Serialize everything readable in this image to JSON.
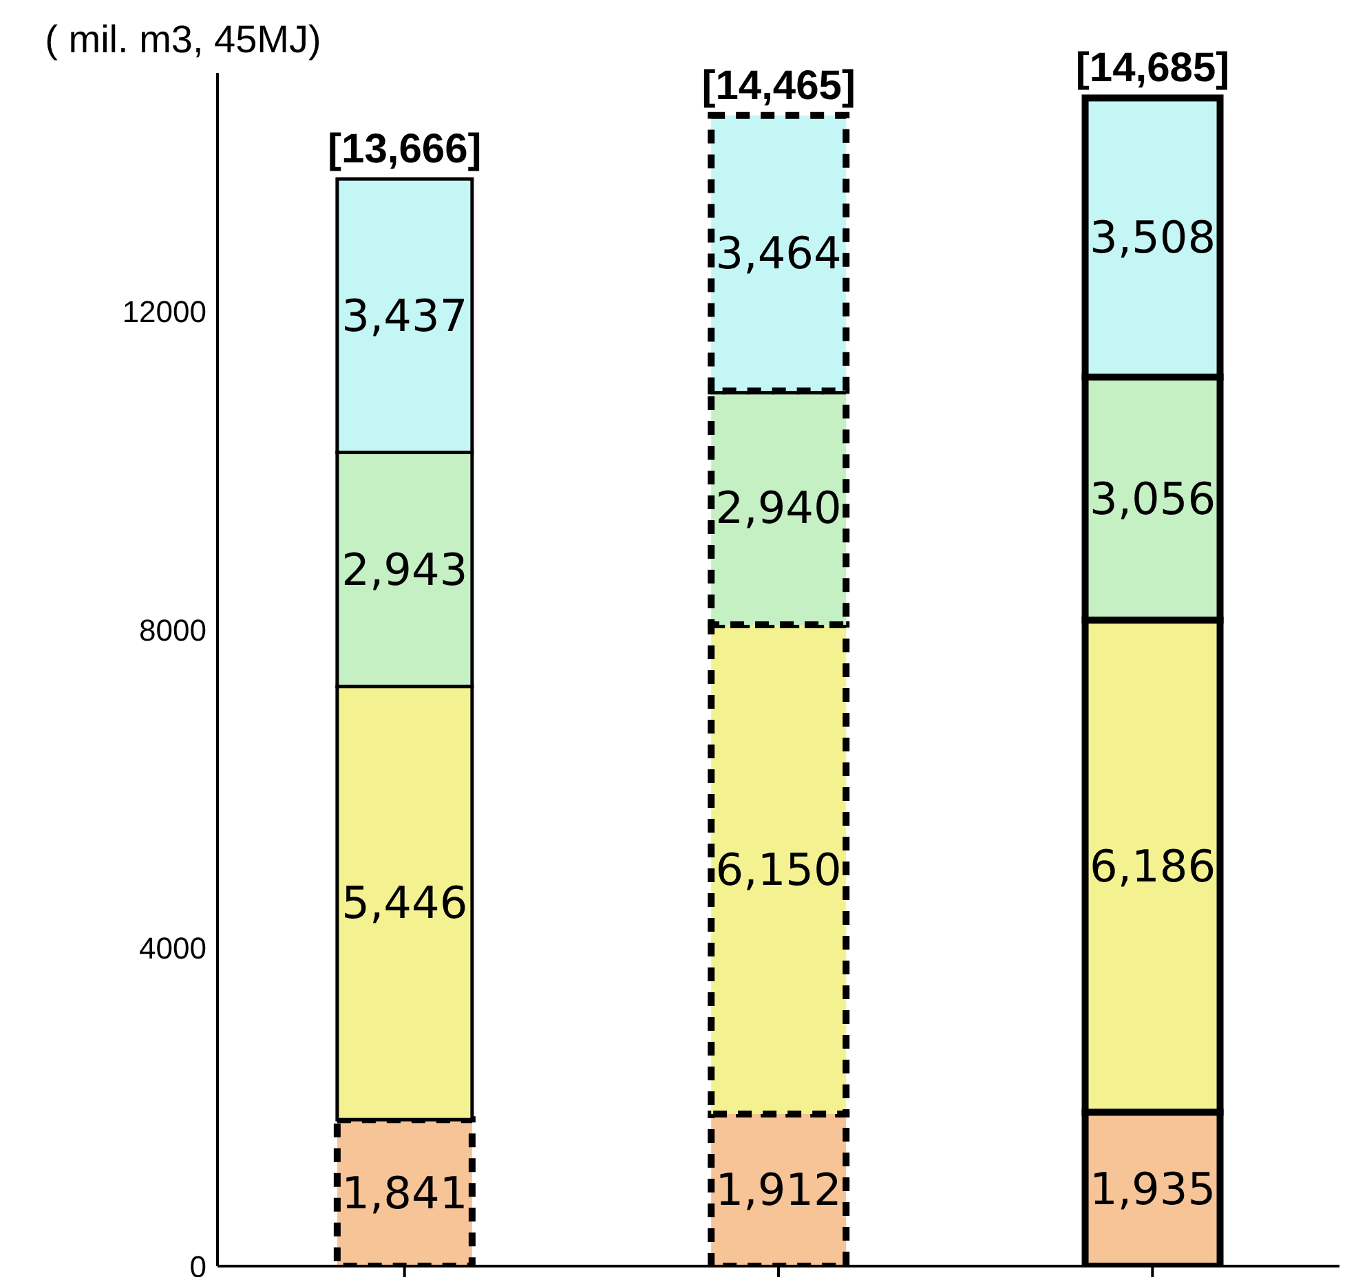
{
  "chart_data": {
    "type": "bar",
    "ylabel": "( mil. m3, 45MJ)",
    "categories": [
      null,
      null,
      null
    ],
    "stacked": true,
    "totals": [
      "[13,666]",
      "[14,465]",
      "[14,685]"
    ],
    "series": [
      {
        "color": "#f6c497",
        "values": [
          1841,
          1912,
          1935
        ],
        "value_labels": [
          "1,841",
          "1,912",
          "1,935"
        ]
      },
      {
        "color": "#f4f290",
        "values": [
          5446,
          6150,
          6186
        ],
        "value_labels": [
          "5,446",
          "6,150",
          "6,186"
        ]
      },
      {
        "color": "#c4f0c4",
        "values": [
          2943,
          2940,
          3056
        ],
        "value_labels": [
          "2,943",
          "2,940",
          "3,056"
        ]
      },
      {
        "color": "#c4f6f6",
        "values": [
          3437,
          3464,
          3508
        ],
        "value_labels": [
          "3,437",
          "3,464",
          "3,508"
        ]
      }
    ],
    "ylim": [
      0,
      15000
    ],
    "yticks": [
      0,
      4000,
      8000,
      12000
    ],
    "grid": false,
    "legend": false
  }
}
